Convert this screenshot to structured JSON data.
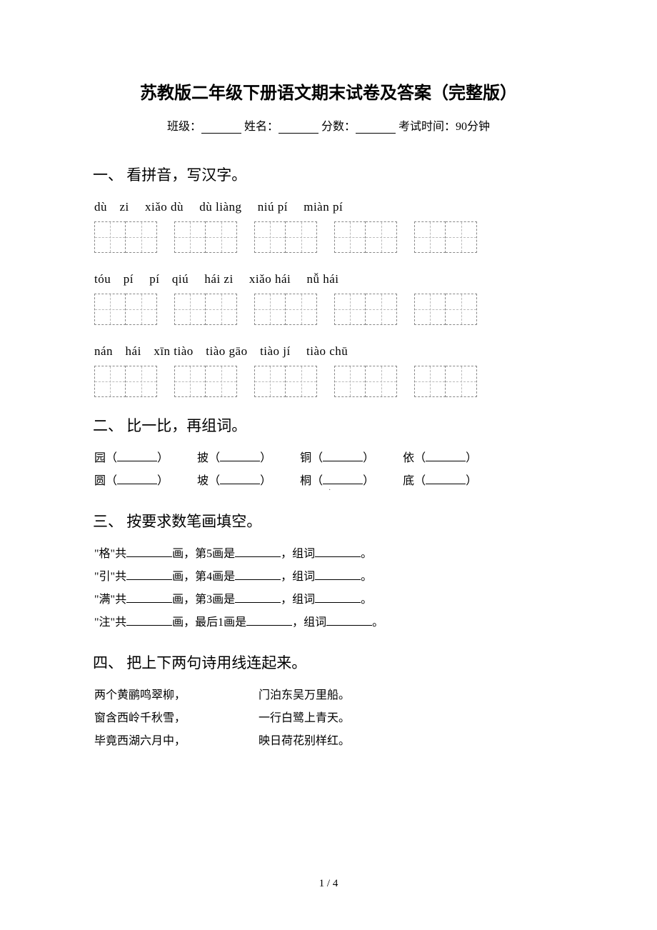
{
  "title": "苏教版二年级下册语文期末试卷及答案（完整版）",
  "info": {
    "class_label": "班级：",
    "name_label": "姓名：",
    "score_label": "分数：",
    "time_label": "考试时间：90分钟"
  },
  "section1": {
    "head": "一、 看拼音，写汉字。",
    "rows": [
      {
        "pinyin": "dù　zi　 xiǎo  dù　 dù  liàng　 niú  pí　 miàn  pí"
      },
      {
        "pinyin": "tóu　pí　 pí　qiú　 hái  zi　 xiǎo  hái　 nǚ  hái"
      },
      {
        "pinyin": "nán　hái　xīn  tiào　tiào  gāo　tiào  jí　 tiào  chū"
      }
    ]
  },
  "section2": {
    "head": "二、 比一比，再组词。",
    "pairs": [
      [
        {
          "char": "园"
        },
        {
          "char": "披"
        },
        {
          "char": "铜"
        },
        {
          "char": "依"
        }
      ],
      [
        {
          "char": "圆"
        },
        {
          "char": "坡"
        },
        {
          "char": "桐"
        },
        {
          "char": "底"
        }
      ]
    ],
    "open": "（",
    "close": "）"
  },
  "section3": {
    "head": "三、 按要求数笔画填空。",
    "lines": [
      {
        "pre": "\"格\"共",
        "mid1": "画，第5画是",
        "mid2": "，组词",
        "end": "。"
      },
      {
        "pre": "\"引\"共",
        "mid1": "画，第4画是",
        "mid2": "，组词",
        "end": "。"
      },
      {
        "pre": "\"满\"共",
        "mid1": "画，第3画是",
        "mid2": "，组词",
        "end": "。"
      },
      {
        "pre": "\"注\"共",
        "mid1": "画，最后1画是",
        "mid2": "，组词",
        "end": "。"
      }
    ]
  },
  "section4": {
    "head": "四、 把上下两句诗用线连起来。",
    "rows": [
      {
        "left": "两个黄鹂鸣翠柳，",
        "right": "门泊东吴万里船。"
      },
      {
        "left": "窗含西岭千秋雪，",
        "right": "一行白鹭上青天。"
      },
      {
        "left": "毕竟西湖六月中，",
        "right": "映日荷花别样红。"
      }
    ]
  },
  "page_num": "1 / 4",
  "colors": {
    "text": "#000000",
    "bg": "#ffffff",
    "dash": "#888888"
  }
}
